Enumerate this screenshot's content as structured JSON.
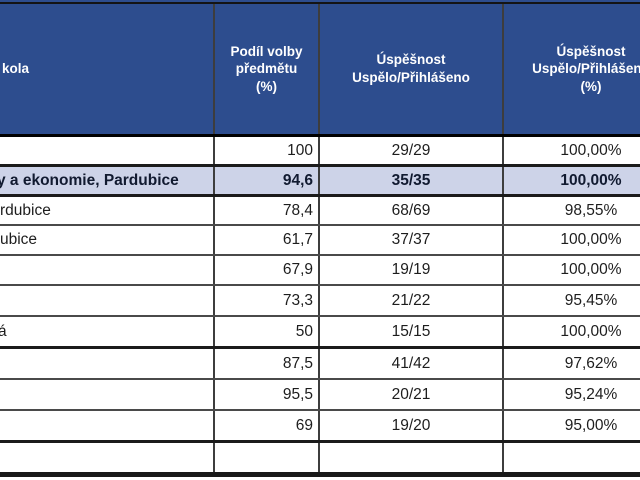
{
  "table": {
    "accent_color": "#2d4d8e",
    "highlight_color": "#cdd3e8",
    "header": {
      "school_label": "kola",
      "podil_label": "Podíl volby\npředmětu\n(%)",
      "ratio_label": "Úspěšnost\nUspělo/Přihlášeno",
      "pct_label": "Úspěšnost\nUspělo/Přihlášeno\n(%)"
    },
    "rows": [
      {
        "school": "",
        "podil": "100",
        "ratio": "29/29",
        "pct": "100,00%"
      },
      {
        "school": "y a ekonomie, Pardubice",
        "podil": "94,6",
        "ratio": "35/35",
        "pct": "100,00%"
      },
      {
        "school": "rdubice",
        "podil": "78,4",
        "ratio": "68/69",
        "pct": "98,55%"
      },
      {
        "school": "ubice",
        "podil": "61,7",
        "ratio": "37/37",
        "pct": "100,00%"
      },
      {
        "school": "",
        "podil": "67,9",
        "ratio": "19/19",
        "pct": "100,00%"
      },
      {
        "school": "",
        "podil": "73,3",
        "ratio": "21/22",
        "pct": "95,45%"
      },
      {
        "school": "á",
        "podil": "50",
        "ratio": "15/15",
        "pct": "100,00%"
      },
      {
        "school": "",
        "podil": "87,5",
        "ratio": "41/42",
        "pct": "97,62%"
      },
      {
        "school": "",
        "podil": "95,5",
        "ratio": "20/21",
        "pct": "95,24%"
      },
      {
        "school": "",
        "podil": "69",
        "ratio": "19/20",
        "pct": "95,00%"
      },
      {
        "school": "",
        "podil": "",
        "ratio": "",
        "pct": ""
      }
    ]
  }
}
